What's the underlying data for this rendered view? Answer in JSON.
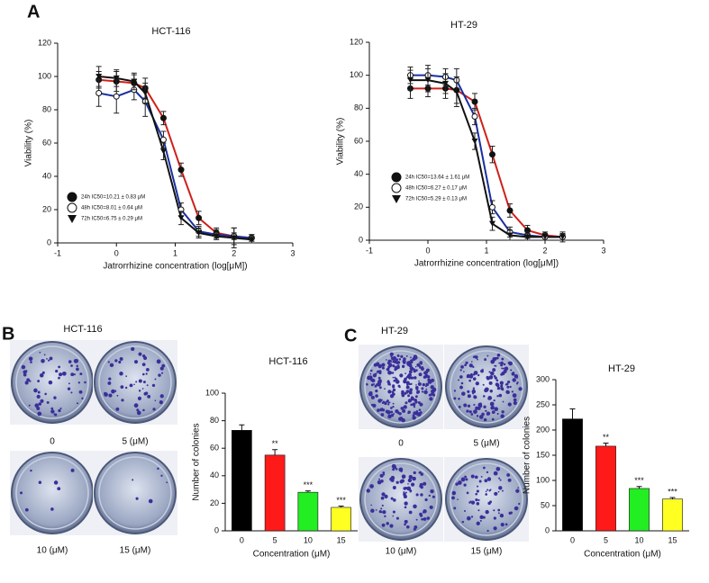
{
  "panels": [
    "A",
    "B",
    "C"
  ],
  "plates": [
    {
      "title": "HCT-116",
      "labels": [
        "0",
        "5 (μM)",
        "10 (μM)",
        "15 (μM)"
      ]
    },
    {
      "title": "HT-29",
      "labels": [
        "0",
        "5 (μM)",
        "10 (μM)",
        "15 (μM)"
      ]
    }
  ],
  "chart_data": [
    {
      "type": "scatter",
      "title": "HCT-116",
      "xlabel": "Jatrorrhizine concentration (log[μM])",
      "ylabel": "Viability (%)",
      "xlim": [
        -1,
        3
      ],
      "xticks": [
        -1,
        0,
        1,
        2,
        3
      ],
      "ylim": [
        0,
        120
      ],
      "yticks": [
        0,
        20,
        40,
        60,
        80,
        100,
        120
      ],
      "x": [
        -0.3,
        0,
        0.3,
        0.49,
        0.8,
        1.1,
        1.4,
        1.7,
        2,
        2.3
      ],
      "series": [
        {
          "name": "24h IC50=10.21 ± 0.83 μM",
          "color": "#d0201a",
          "marker": "circle",
          "values": [
            98,
            97,
            96,
            93,
            75,
            44,
            15,
            6,
            4,
            3
          ],
          "errors": [
            5,
            6,
            5,
            6,
            4,
            4,
            4,
            3,
            5,
            2
          ]
        },
        {
          "name": "48h IC50=8.01 ± 0.64 μM",
          "color": "#1a2fa0",
          "marker": "open-circle",
          "values": [
            90,
            88,
            92,
            85,
            62,
            20,
            7,
            5,
            4,
            3
          ],
          "errors": [
            8,
            10,
            6,
            9,
            5,
            4,
            3,
            3,
            2,
            2
          ]
        },
        {
          "name": "72h IC50=6.75 ± 0.29 μM",
          "color": "#111111",
          "marker": "triangle",
          "values": [
            100,
            99,
            97,
            90,
            55,
            15,
            6,
            4,
            3,
            2
          ],
          "errors": [
            6,
            5,
            5,
            6,
            5,
            4,
            3,
            2,
            6,
            2
          ]
        }
      ]
    },
    {
      "type": "scatter",
      "title": "HT-29",
      "xlabel": "Jatrorrhizine concentration (log[μM])",
      "ylabel": "Viability (%)",
      "xlim": [
        -1,
        3
      ],
      "xticks": [
        -1,
        0,
        1,
        2,
        3
      ],
      "ylim": [
        0,
        120
      ],
      "yticks": [
        0,
        20,
        40,
        60,
        80,
        100,
        120
      ],
      "x": [
        -0.3,
        0,
        0.3,
        0.49,
        0.8,
        1.1,
        1.4,
        1.7,
        2,
        2.3
      ],
      "series": [
        {
          "name": "24h IC50=13.64 ± 1.61 μM",
          "color": "#d0201a",
          "marker": "circle",
          "values": [
            92,
            92,
            92,
            91,
            84,
            52,
            18,
            6,
            3,
            2
          ],
          "errors": [
            6,
            5,
            6,
            8,
            5,
            5,
            4,
            3,
            2,
            3
          ]
        },
        {
          "name": "48h IC50=6.27 ± 0.17 μM",
          "color": "#1a2fa0",
          "marker": "open-circle",
          "values": [
            100,
            100,
            99,
            97,
            75,
            20,
            5,
            3,
            2,
            2
          ],
          "errors": [
            5,
            6,
            5,
            7,
            5,
            4,
            3,
            2,
            2,
            2
          ]
        },
        {
          "name": "72h IC50=5.29 ± 0.13 μM",
          "color": "#111111",
          "marker": "triangle",
          "values": [
            97,
            97,
            95,
            90,
            60,
            10,
            3,
            2,
            2,
            2
          ],
          "errors": [
            6,
            7,
            6,
            9,
            5,
            4,
            3,
            2,
            2,
            2
          ]
        }
      ]
    },
    {
      "type": "bar",
      "title": "HCT-116",
      "xlabel": "Concentration (μM)",
      "ylabel": "Number of colonies",
      "categories": [
        "0",
        "5",
        "10",
        "15"
      ],
      "values": [
        73,
        55,
        28,
        17
      ],
      "errors": [
        4,
        4,
        1,
        1
      ],
      "annotations": [
        null,
        "**",
        "***",
        "***"
      ],
      "colors": [
        "#000000",
        "#ff1a1a",
        "#22ee22",
        "#ffff22"
      ],
      "ylim": [
        0,
        100
      ],
      "yticks": [
        0,
        20,
        40,
        60,
        80,
        100
      ]
    },
    {
      "type": "bar",
      "title": "HT-29",
      "xlabel": "Concentration (μM)",
      "ylabel": "Number of colonies",
      "categories": [
        "0",
        "5",
        "10",
        "15"
      ],
      "values": [
        222,
        168,
        84,
        63
      ],
      "errors": [
        20,
        6,
        4,
        3
      ],
      "annotations": [
        null,
        "**",
        "***",
        "***"
      ],
      "colors": [
        "#000000",
        "#ff1a1a",
        "#22ee22",
        "#ffff22"
      ],
      "ylim": [
        0,
        300
      ],
      "yticks": [
        0,
        50,
        100,
        150,
        200,
        250,
        300
      ]
    }
  ]
}
